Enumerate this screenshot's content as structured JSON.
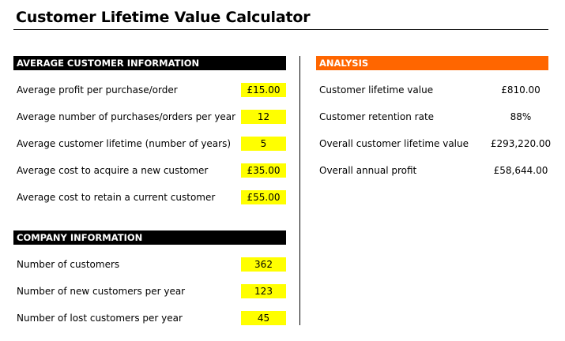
{
  "title": "Customer Lifetime Value Calculator",
  "average_customer_information": {
    "header": "AVERAGE CUSTOMER INFORMATION",
    "rows": [
      {
        "label": "Average profit per purchase/order",
        "value": "£15.00"
      },
      {
        "label": "Average number of purchases/orders per year",
        "value": "12"
      },
      {
        "label": "Average customer lifetime (number of years)",
        "value": "5"
      },
      {
        "label": "Average cost to acquire a new customer",
        "value": "£35.00"
      },
      {
        "label": "Average cost to retain a current customer",
        "value": "£55.00"
      }
    ]
  },
  "company_information": {
    "header": "COMPANY INFORMATION",
    "rows": [
      {
        "label": "Number of customers",
        "value": "362"
      },
      {
        "label": "Number of new customers per year",
        "value": "123"
      },
      {
        "label": "Number of lost customers per year",
        "value": "45"
      }
    ]
  },
  "analysis": {
    "header": "ANALYSIS",
    "rows": [
      {
        "label": "Customer lifetime value",
        "value": "£810.00"
      },
      {
        "label": "Customer retention rate",
        "value": "88%"
      },
      {
        "label": "Overall customer lifetime value",
        "value": "£293,220.00"
      },
      {
        "label": "Overall annual profit",
        "value": "£58,644.00"
      }
    ]
  },
  "colors": {
    "input_highlight": "#ffff00",
    "analysis_header": "#ff6600",
    "section_header": "#000000"
  }
}
